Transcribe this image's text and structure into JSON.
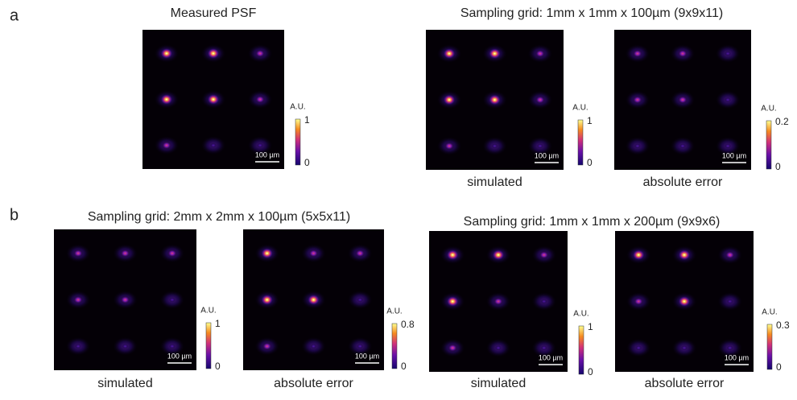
{
  "panel_labels": [
    "a",
    "b"
  ],
  "titles": [
    "Measured PSF",
    "Sampling grid: 1mm x 1mm x 100µm (9x9x11)",
    "Sampling grid: 2mm x 2mm x 100µm (5x5x11)",
    "Sampling grid: 1mm x 1mm x 200µm (9x9x6)"
  ],
  "images": [
    {
      "scalebar": "100 µm",
      "colorbar": {
        "unit": "A.U.",
        "max": 1,
        "min": 0
      }
    },
    {
      "caption": "simulated",
      "scalebar": "100 µm",
      "colorbar": {
        "unit": "A.U.",
        "max": 1,
        "min": 0
      }
    },
    {
      "caption": "absolute error",
      "scalebar": "100 µm",
      "colorbar": {
        "unit": "A.U.",
        "max": 0.2,
        "min": 0
      }
    },
    {
      "caption": "simulated",
      "scalebar": "100 µm",
      "colorbar": {
        "unit": "A.U.",
        "max": 1,
        "min": 0
      }
    },
    {
      "caption": "absolute error",
      "scalebar": "100 µm",
      "colorbar": {
        "unit": "A.U.",
        "max": 0.8,
        "min": 0
      }
    },
    {
      "caption": "simulated",
      "scalebar": "100 µm",
      "colorbar": {
        "unit": "A.U.",
        "max": 1,
        "min": 0
      }
    },
    {
      "caption": "absolute error",
      "scalebar": "100 µm",
      "colorbar": {
        "unit": "A.U.",
        "max": 0.3,
        "min": 0
      }
    }
  ]
}
